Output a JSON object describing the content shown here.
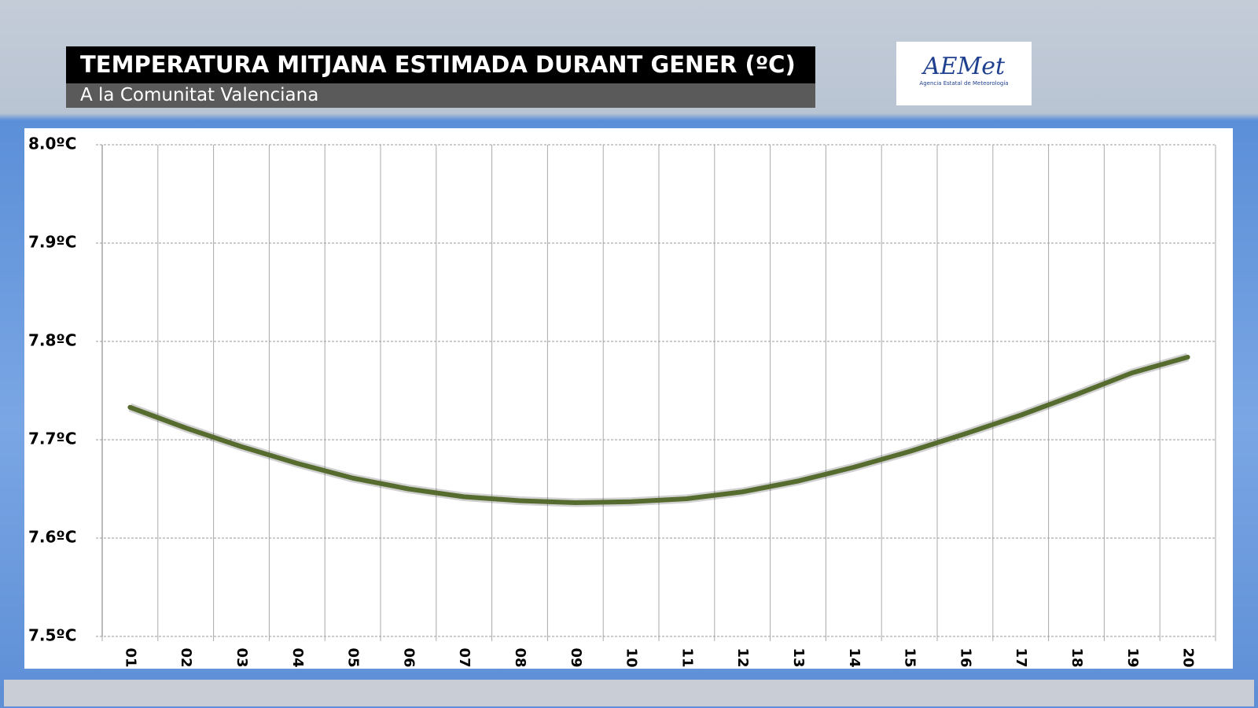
{
  "chart_data": {
    "type": "line",
    "title": "TEMPERATURA MITJANA ESTIMADA DURANT GENER (ºC)",
    "subtitle": "A la Comunitat Valenciana",
    "categories": [
      "01",
      "02",
      "03",
      "04",
      "05",
      "06",
      "07",
      "08",
      "09",
      "10",
      "11",
      "12",
      "13",
      "14",
      "15",
      "16",
      "17",
      "18",
      "19",
      "20"
    ],
    "values": [
      7.733,
      7.712,
      7.693,
      7.676,
      7.661,
      7.65,
      7.642,
      7.638,
      7.636,
      7.637,
      7.64,
      7.647,
      7.658,
      7.672,
      7.688,
      7.706,
      7.725,
      7.746,
      7.768,
      7.784
    ],
    "color": "#566b2e",
    "ylim": [
      7.5,
      8.0
    ],
    "yticks": [
      {
        "value": 7.5,
        "label": "7.5ºC"
      },
      {
        "value": 7.6,
        "label": "7.6ºC"
      },
      {
        "value": 7.7,
        "label": "7.7ºC"
      },
      {
        "value": 7.8,
        "label": "7.8ºC"
      },
      {
        "value": 7.9,
        "label": "7.9ºC"
      },
      {
        "value": 8.0,
        "label": "8.0ºC"
      }
    ],
    "grid": true
  },
  "logo": {
    "name": "AEMet",
    "caption": "Agencia Estatal de Meteorología"
  }
}
